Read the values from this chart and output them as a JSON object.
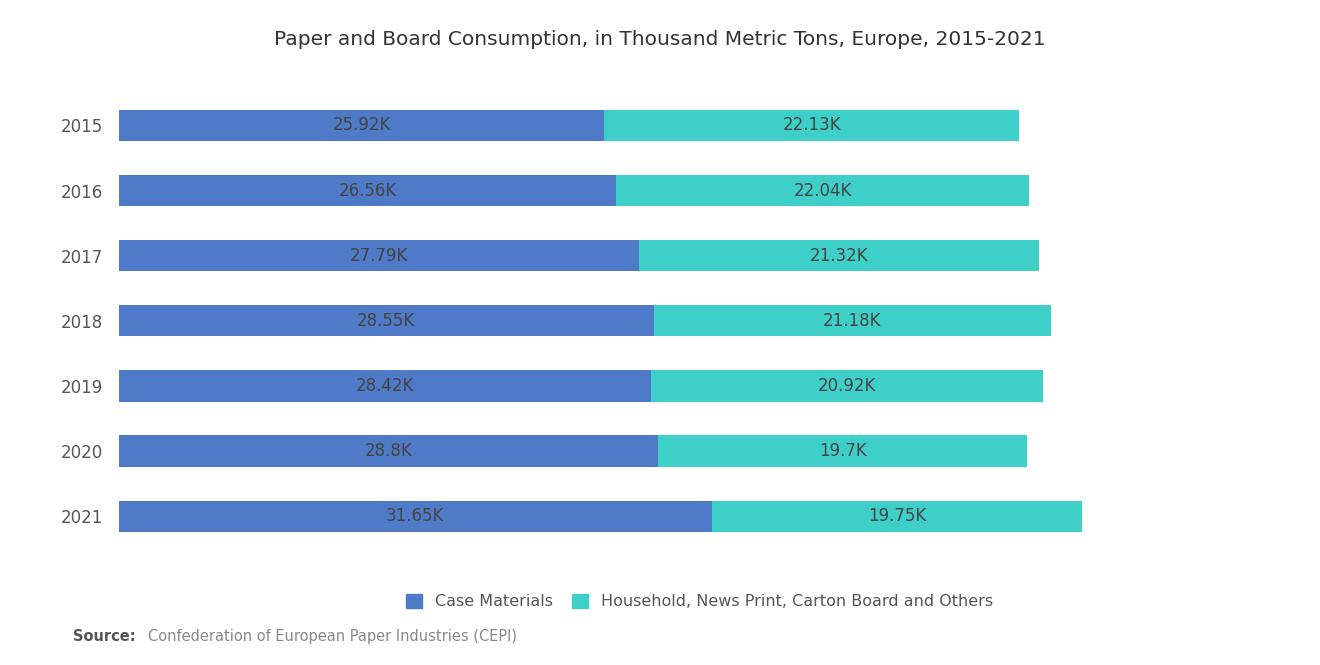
{
  "title": "Paper and Board Consumption, in Thousand Metric Tons, Europe, 2015-2021",
  "years": [
    "2015",
    "2016",
    "2017",
    "2018",
    "2019",
    "2020",
    "2021"
  ],
  "case_materials": [
    25.92,
    26.56,
    27.79,
    28.55,
    28.42,
    28.8,
    31.65
  ],
  "household": [
    22.13,
    22.04,
    21.32,
    21.18,
    20.92,
    19.7,
    19.75
  ],
  "case_labels": [
    "25.92K",
    "26.56K",
    "27.79K",
    "28.55K",
    "28.42K",
    "28.8K",
    "31.65K"
  ],
  "household_labels": [
    "22.13K",
    "22.04K",
    "21.32K",
    "21.18K",
    "20.92K",
    "19.7K",
    "19.75K"
  ],
  "color_case": "#4F7AC7",
  "color_household": "#3ECFC9",
  "legend_case": "Case Materials",
  "legend_household": "Household, News Print, Carton Board and Others",
  "source_bold": "Source:",
  "source_text": "Confederation of European Paper Industries (CEPI)",
  "background_color": "#FFFFFF",
  "title_fontsize": 14.5,
  "label_fontsize": 12,
  "year_fontsize": 12,
  "bar_height": 0.48,
  "xlim": 62,
  "label_color": "#444444"
}
